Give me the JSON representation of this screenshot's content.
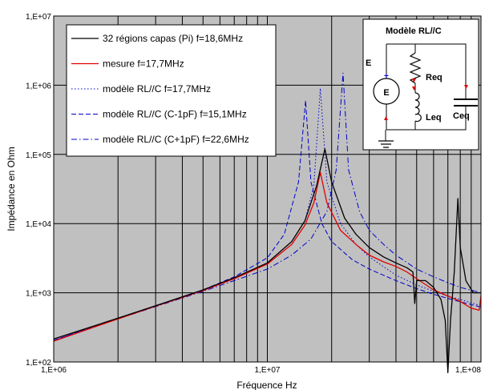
{
  "chart_data": {
    "type": "line",
    "xlabel": "Fréquence Hz",
    "ylabel": "Impédance en Ohm",
    "x_scale": "log",
    "y_scale": "log",
    "xlim": [
      1000000,
      100000000
    ],
    "ylim": [
      100,
      10000000
    ],
    "x_ticks": [
      "1,E+06",
      "1,E+07",
      "1,E+08"
    ],
    "y_ticks": [
      "1,E+02",
      "1,E+03",
      "1,E+04",
      "1,E+05",
      "1,E+06",
      "1,E+07"
    ],
    "grid": true,
    "legend_position": "top-left",
    "series": [
      {
        "name": "32 régions capas (Pi) f=18,6MHz",
        "color": "#000000",
        "style": "solid",
        "points": [
          [
            1000000,
            215
          ],
          [
            2000000,
            430
          ],
          [
            3000000,
            650
          ],
          [
            5000000,
            1100
          ],
          [
            7000000,
            1650
          ],
          [
            10000000,
            2700
          ],
          [
            13000000,
            5500
          ],
          [
            15000000,
            11000
          ],
          [
            17000000,
            35000
          ],
          [
            18600000,
            120000
          ],
          [
            20000000,
            40000
          ],
          [
            23000000,
            12000
          ],
          [
            26000000,
            7000
          ],
          [
            30000000,
            4500
          ],
          [
            35000000,
            3300
          ],
          [
            40000000,
            2700
          ],
          [
            45000000,
            2300
          ],
          [
            48000000,
            2000
          ],
          [
            49000000,
            700
          ],
          [
            50000000,
            1500
          ],
          [
            55000000,
            1500
          ],
          [
            60000000,
            1200
          ],
          [
            65000000,
            800
          ],
          [
            68000000,
            400
          ],
          [
            70000000,
            70
          ],
          [
            72000000,
            400
          ],
          [
            75000000,
            2000
          ],
          [
            78000000,
            23000
          ],
          [
            80000000,
            4500
          ],
          [
            85000000,
            1500
          ],
          [
            92000000,
            1000
          ],
          [
            100000000,
            1000
          ]
        ]
      },
      {
        "name": "mesure f=17,7MHz",
        "color": "#e00000",
        "style": "solid",
        "points": [
          [
            1000000,
            200
          ],
          [
            2000000,
            420
          ],
          [
            3000000,
            640
          ],
          [
            5000000,
            1080
          ],
          [
            7000000,
            1600
          ],
          [
            10000000,
            2600
          ],
          [
            13000000,
            5000
          ],
          [
            15000000,
            9500
          ],
          [
            16500000,
            20000
          ],
          [
            17700000,
            55000
          ],
          [
            19000000,
            20000
          ],
          [
            22000000,
            8000
          ],
          [
            26000000,
            5000
          ],
          [
            30000000,
            3500
          ],
          [
            35000000,
            2800
          ],
          [
            40000000,
            2400
          ],
          [
            45000000,
            2000
          ],
          [
            50000000,
            1600
          ],
          [
            60000000,
            1100
          ],
          [
            70000000,
            900
          ],
          [
            80000000,
            750
          ],
          [
            90000000,
            600
          ],
          [
            98000000,
            560
          ],
          [
            100000000,
            900
          ]
        ]
      },
      {
        "name": "modèle RL//C f=17,7MHz",
        "color": "#0000cc",
        "style": "dotted",
        "points": [
          [
            1000000,
            205
          ],
          [
            2000000,
            430
          ],
          [
            3000000,
            650
          ],
          [
            5000000,
            1090
          ],
          [
            7000000,
            1620
          ],
          [
            10000000,
            2700
          ],
          [
            13000000,
            5500
          ],
          [
            15000000,
            11000
          ],
          [
            16500000,
            35000
          ],
          [
            17700000,
            900000
          ],
          [
            19000000,
            40000
          ],
          [
            22000000,
            10000
          ],
          [
            26000000,
            5000
          ],
          [
            30000000,
            3300
          ],
          [
            40000000,
            1800
          ],
          [
            50000000,
            1300
          ],
          [
            60000000,
            1050
          ],
          [
            70000000,
            900
          ],
          [
            80000000,
            800
          ],
          [
            100000000,
            650
          ]
        ]
      },
      {
        "name": "modèle RL//C (C-1pF) f=15,1MHz",
        "color": "#0000cc",
        "style": "dashed",
        "points": [
          [
            1000000,
            205
          ],
          [
            2000000,
            430
          ],
          [
            3000000,
            650
          ],
          [
            5000000,
            1100
          ],
          [
            7000000,
            1700
          ],
          [
            10000000,
            3200
          ],
          [
            12000000,
            7000
          ],
          [
            14000000,
            40000
          ],
          [
            15100000,
            600000
          ],
          [
            16000000,
            40000
          ],
          [
            18000000,
            10000
          ],
          [
            20000000,
            5500
          ],
          [
            25000000,
            3000
          ],
          [
            30000000,
            2200
          ],
          [
            40000000,
            1500
          ],
          [
            50000000,
            1150
          ],
          [
            60000000,
            950
          ],
          [
            70000000,
            830
          ],
          [
            80000000,
            740
          ],
          [
            100000000,
            620
          ]
        ]
      },
      {
        "name": "modèle RL//C (C+1pF) f=22,6MHz",
        "color": "#0000cc",
        "style": "dashdot",
        "points": [
          [
            1000000,
            205
          ],
          [
            2000000,
            420
          ],
          [
            3000000,
            630
          ],
          [
            5000000,
            1050
          ],
          [
            7000000,
            1500
          ],
          [
            10000000,
            2200
          ],
          [
            13000000,
            3500
          ],
          [
            16000000,
            6000
          ],
          [
            19000000,
            15000
          ],
          [
            21000000,
            60000
          ],
          [
            22600000,
            1500000
          ],
          [
            24000000,
            60000
          ],
          [
            27000000,
            15000
          ],
          [
            30000000,
            8000
          ],
          [
            35000000,
            5000
          ],
          [
            40000000,
            3500
          ],
          [
            50000000,
            2200
          ],
          [
            60000000,
            1700
          ],
          [
            70000000,
            1400
          ],
          [
            80000000,
            1200
          ],
          [
            100000000,
            1000
          ]
        ]
      }
    ],
    "inset": {
      "title": "Modèle RL//C",
      "source_label": "E",
      "source_symbol": "E",
      "resistor_label": "Req",
      "inductor_label": "Leq",
      "capacitor_label": "Ceq"
    }
  }
}
